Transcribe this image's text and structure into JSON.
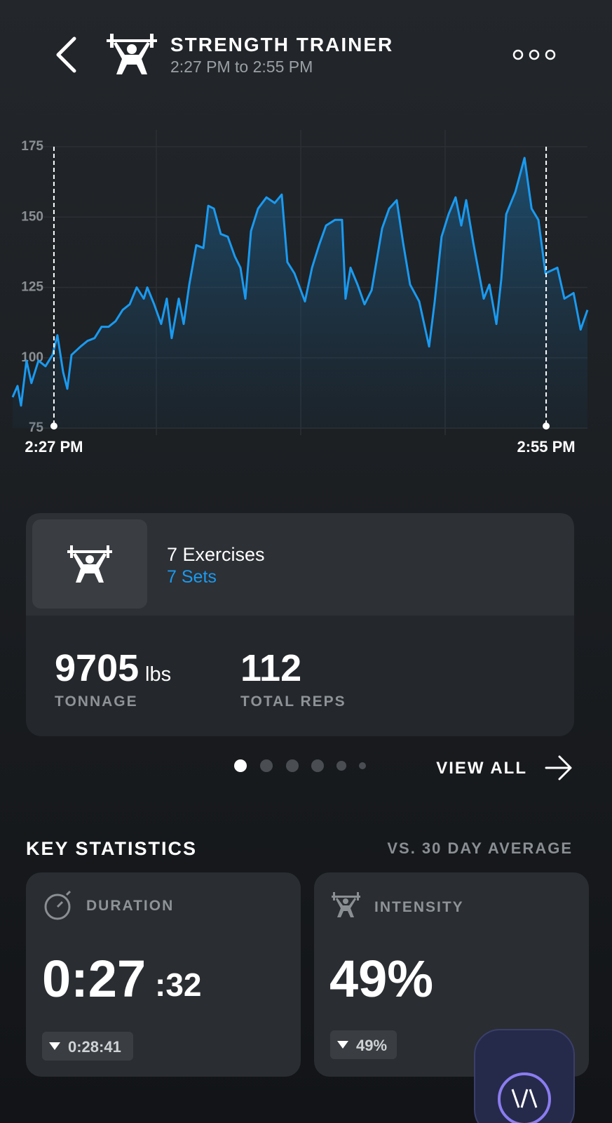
{
  "header": {
    "title": "STRENGTH TRAINER",
    "subtitle": "2:27 PM to 2:55 PM"
  },
  "chart_data": {
    "type": "line",
    "color": "#1a9af0",
    "grid": true,
    "x": [
      -2.35,
      -2.07,
      -1.87,
      -1.56,
      -1.28,
      -0.88,
      -0.48,
      -0.08,
      0.2,
      0.52,
      0.76,
      1.0,
      1.52,
      1.91,
      2.31,
      2.71,
      3.11,
      3.51,
      3.91,
      4.31,
      4.71,
      5.11,
      5.31,
      5.7,
      6.1,
      6.42,
      6.7,
      7.1,
      7.38,
      7.7,
      8.1,
      8.5,
      8.78,
      9.1,
      9.49,
      9.89,
      10.29,
      10.61,
      10.89,
      11.21,
      11.61,
      12.09,
      12.56,
      12.96,
      13.28,
      13.68,
      14.28,
      14.68,
      15.08,
      15.48,
      15.99,
      16.39,
      16.59,
      16.87,
      17.27,
      17.67,
      18.07,
      18.67,
      19.07,
      19.5,
      19.86,
      20.26,
      20.78,
      21.34,
      21.66,
      22.05,
      22.45,
      22.85,
      23.17,
      23.45,
      23.85,
      24.45,
      24.77,
      25.17,
      25.45,
      25.73,
      26.25,
      26.77,
      27.17,
      27.56,
      27.96,
      28.64,
      29.04,
      29.56,
      29.96,
      30.35
    ],
    "values": [
      86,
      90,
      83,
      99,
      91,
      99,
      97,
      101,
      108,
      95,
      89,
      101,
      104,
      106,
      107,
      111,
      111,
      113,
      117,
      119,
      125,
      121,
      125,
      119,
      112,
      121,
      107,
      121,
      112,
      126,
      140,
      139,
      154,
      153,
      144,
      143,
      136,
      132,
      121,
      145,
      153,
      157,
      155,
      158,
      134,
      130,
      120,
      132,
      140,
      147,
      149,
      149,
      121,
      132,
      126,
      119,
      124,
      146,
      153,
      156,
      141,
      126,
      120,
      104,
      120,
      143,
      151,
      157,
      147,
      156,
      141,
      121,
      126,
      112,
      128,
      151,
      159,
      171,
      153,
      149,
      130,
      132,
      121,
      123,
      110,
      117
    ],
    "xlim": [
      -2.35,
      30.35
    ],
    "ylim": [
      75,
      175
    ],
    "yticks": [
      75,
      100,
      125,
      150,
      175
    ],
    "markers": [
      {
        "x": 0,
        "label": "2:27 PM"
      },
      {
        "x": 28,
        "label": "2:55 PM"
      }
    ]
  },
  "workout_card": {
    "exercises": "7 Exercises",
    "sets": "7 Sets",
    "tonnage": {
      "value": "9705",
      "unit": "lbs",
      "label": "TONNAGE"
    },
    "reps": {
      "value": "112",
      "label": "TOTAL REPS"
    }
  },
  "view_all": "VIEW ALL",
  "key_statistics": {
    "title": "KEY STATISTICS",
    "comparison": "VS. 30 DAY AVERAGE",
    "cards": [
      {
        "label": "DURATION",
        "value": "0:27",
        "value_small": ":32",
        "delta": "0:28:41"
      },
      {
        "label": "INTENSITY",
        "value": "49%",
        "delta": "49%"
      }
    ]
  }
}
